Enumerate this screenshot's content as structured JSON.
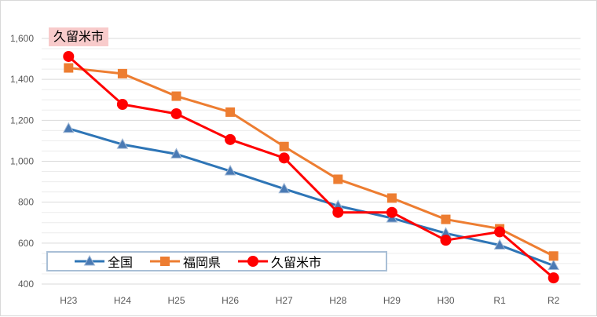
{
  "chart_data": {
    "type": "line",
    "title": "久留米市",
    "categories": [
      "H23",
      "H24",
      "H25",
      "H26",
      "H27",
      "H28",
      "H29",
      "H30",
      "R1",
      "R2"
    ],
    "ylim": [
      400,
      1600
    ],
    "yticks": [
      "400",
      "600",
      "800",
      "1,000",
      "1,200",
      "1,400",
      "1,600"
    ],
    "grid": true,
    "legend_position": "bottom-left",
    "series": [
      {
        "name": "全国",
        "color": "#2e75b6",
        "marker": "triangle",
        "values": [
          1160,
          1082,
          1035,
          952,
          865,
          782,
          722,
          648,
          590,
          490
        ]
      },
      {
        "name": "福岡県",
        "color": "#ed7d31",
        "marker": "square",
        "values": [
          1456,
          1428,
          1318,
          1240,
          1072,
          912,
          820,
          716,
          670,
          537
        ]
      },
      {
        "name": "久留米市",
        "color": "#ff0000",
        "marker": "circle",
        "values": [
          1512,
          1278,
          1232,
          1106,
          1016,
          750,
          750,
          614,
          655,
          430
        ]
      }
    ]
  }
}
